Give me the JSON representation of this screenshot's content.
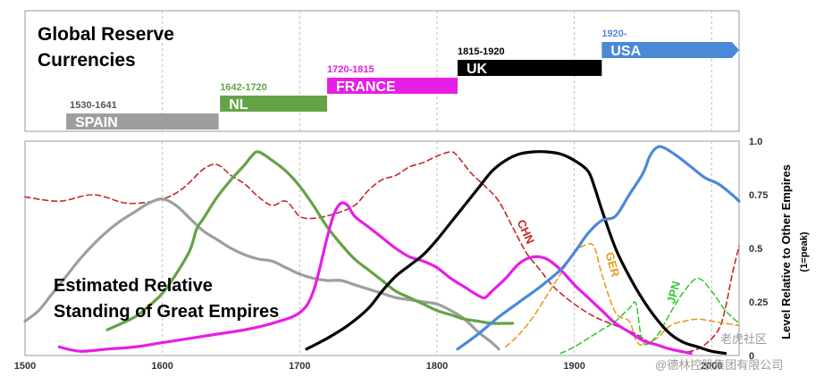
{
  "chart_data": [
    {
      "type": "bar",
      "title": "Global Reserve Currencies",
      "xlim": [
        1500,
        2020
      ],
      "bars": [
        {
          "name": "SPAIN",
          "period": "1530-1641",
          "start": 1530,
          "end": 1641,
          "color": "#9e9e9e",
          "level": 0
        },
        {
          "name": "NL",
          "period": "1642-1720",
          "start": 1642,
          "end": 1720,
          "color": "#64a347",
          "level": 1
        },
        {
          "name": "FRANCE",
          "period": "1720-1815",
          "start": 1720,
          "end": 1815,
          "color": "#e61ee6",
          "level": 2
        },
        {
          "name": "UK",
          "period": "1815-1920",
          "start": 1815,
          "end": 1920,
          "color": "#000000",
          "level": 3
        },
        {
          "name": "USA",
          "period": "1920-",
          "start": 1920,
          "end": 2020,
          "color": "#4a89d8",
          "level": 4,
          "arrow": true
        }
      ]
    },
    {
      "type": "line",
      "title": "Estimated Relative Standing of Great Empires",
      "ylabel": "Level Relative to Other Empires",
      "ylabel_sub": "(1=peak)",
      "xlim": [
        1500,
        2020
      ],
      "ylim": [
        0,
        1
      ],
      "xticks": [
        1500,
        1600,
        1700,
        1800,
        1900,
        2000
      ],
      "xtick_labels": [
        "1500",
        "1600",
        "1700",
        "1800",
        "1900",
        "2000"
      ],
      "yticks": [
        0,
        0.25,
        0.5,
        0.75,
        1
      ],
      "ytick_labels": [
        "0",
        "0.25",
        "0.5",
        "0.75",
        "1.0"
      ],
      "grid": "vertical-dashed",
      "series": [
        {
          "name": "",
          "color": "#c62828",
          "dash": true,
          "x": [
            1500,
            1525,
            1550,
            1575,
            1600,
            1615,
            1630,
            1640,
            1650,
            1660,
            1670,
            1680,
            1690,
            1700,
            1710,
            1725,
            1740,
            1750,
            1760,
            1770,
            1780,
            1790,
            1800,
            1810,
            1815,
            1825,
            1835,
            1845,
            1855,
            1865,
            1875,
            1885,
            1900,
            1915,
            1930,
            1945,
            1955,
            1965,
            1975,
            1985,
            1995,
            2005,
            2010,
            2015,
            2020
          ],
          "y": [
            0.74,
            0.72,
            0.75,
            0.71,
            0.73,
            0.78,
            0.87,
            0.89,
            0.84,
            0.8,
            0.74,
            0.7,
            0.72,
            0.65,
            0.64,
            0.66,
            0.7,
            0.77,
            0.82,
            0.84,
            0.88,
            0.9,
            0.93,
            0.95,
            0.93,
            0.85,
            0.79,
            0.72,
            0.6,
            0.48,
            0.4,
            0.32,
            0.24,
            0.18,
            0.14,
            0.1,
            0.06,
            0.04,
            0.02,
            0.02,
            0.05,
            0.12,
            0.22,
            0.38,
            0.51
          ]
        },
        {
          "name": "SPAIN",
          "color": "#9e9e9e",
          "x": [
            1500,
            1510,
            1520,
            1530,
            1540,
            1550,
            1560,
            1570,
            1580,
            1590,
            1600,
            1610,
            1620,
            1630,
            1640,
            1650,
            1660,
            1670,
            1680,
            1690,
            1700,
            1710,
            1720,
            1730,
            1740,
            1750,
            1760,
            1770,
            1780,
            1790,
            1800,
            1810,
            1820,
            1830,
            1840,
            1845
          ],
          "y": [
            0.16,
            0.21,
            0.29,
            0.37,
            0.45,
            0.52,
            0.58,
            0.63,
            0.67,
            0.71,
            0.73,
            0.7,
            0.64,
            0.58,
            0.54,
            0.5,
            0.47,
            0.45,
            0.44,
            0.41,
            0.38,
            0.36,
            0.35,
            0.35,
            0.33,
            0.31,
            0.29,
            0.27,
            0.26,
            0.25,
            0.24,
            0.21,
            0.17,
            0.11,
            0.06,
            0.03
          ]
        },
        {
          "name": "NL",
          "color": "#64a347",
          "x": [
            1560,
            1580,
            1590,
            1600,
            1610,
            1620,
            1625,
            1630,
            1640,
            1650,
            1660,
            1665,
            1670,
            1680,
            1690,
            1700,
            1710,
            1720,
            1730,
            1740,
            1750,
            1760,
            1770,
            1780,
            1790,
            1800,
            1810,
            1820,
            1830,
            1840,
            1850,
            1855
          ],
          "y": [
            0.12,
            0.18,
            0.23,
            0.29,
            0.38,
            0.49,
            0.59,
            0.64,
            0.74,
            0.82,
            0.89,
            0.93,
            0.95,
            0.91,
            0.86,
            0.79,
            0.7,
            0.6,
            0.52,
            0.45,
            0.4,
            0.35,
            0.3,
            0.27,
            0.24,
            0.21,
            0.19,
            0.17,
            0.16,
            0.15,
            0.15,
            0.15
          ]
        },
        {
          "name": "FRANCE",
          "color": "#e61ee6",
          "x": [
            1525,
            1540,
            1560,
            1580,
            1600,
            1620,
            1640,
            1660,
            1680,
            1700,
            1710,
            1720,
            1725,
            1730,
            1735,
            1740,
            1750,
            1760,
            1770,
            1780,
            1790,
            1800,
            1810,
            1820,
            1830,
            1835,
            1840,
            1850,
            1860,
            1870,
            1880,
            1890,
            1900,
            1910,
            1920,
            1930,
            1940,
            1950,
            1960,
            1970,
            1985
          ],
          "y": [
            0.04,
            0.02,
            0.03,
            0.04,
            0.06,
            0.08,
            0.1,
            0.12,
            0.15,
            0.2,
            0.3,
            0.55,
            0.66,
            0.71,
            0.7,
            0.65,
            0.6,
            0.55,
            0.5,
            0.46,
            0.44,
            0.41,
            0.36,
            0.32,
            0.28,
            0.27,
            0.3,
            0.36,
            0.43,
            0.46,
            0.45,
            0.4,
            0.33,
            0.27,
            0.21,
            0.15,
            0.11,
            0.07,
            0.05,
            0.03,
            0.01
          ]
        },
        {
          "name": "UK",
          "color": "#000000",
          "x": [
            1705,
            1720,
            1735,
            1750,
            1760,
            1770,
            1780,
            1790,
            1800,
            1810,
            1820,
            1830,
            1840,
            1850,
            1860,
            1870,
            1880,
            1890,
            1900,
            1910,
            1915,
            1920,
            1930,
            1940,
            1950,
            1960,
            1970,
            1980,
            1990,
            2000,
            2010
          ],
          "y": [
            0.03,
            0.08,
            0.14,
            0.22,
            0.3,
            0.37,
            0.42,
            0.47,
            0.54,
            0.62,
            0.7,
            0.78,
            0.86,
            0.91,
            0.94,
            0.95,
            0.95,
            0.94,
            0.91,
            0.86,
            0.78,
            0.68,
            0.5,
            0.37,
            0.26,
            0.17,
            0.1,
            0.06,
            0.04,
            0.02,
            0.01
          ]
        },
        {
          "name": "",
          "color": "#4a89d8",
          "x": [
            1815,
            1830,
            1845,
            1860,
            1875,
            1890,
            1900,
            1910,
            1920,
            1930,
            1940,
            1950,
            1955,
            1960,
            1965,
            1975,
            1985,
            1995,
            2005,
            2015,
            2020
          ],
          "y": [
            0.03,
            0.1,
            0.18,
            0.25,
            0.32,
            0.4,
            0.48,
            0.57,
            0.63,
            0.65,
            0.75,
            0.85,
            0.93,
            0.97,
            0.97,
            0.93,
            0.88,
            0.83,
            0.8,
            0.75,
            0.72
          ]
        },
        {
          "name": "GER",
          "color": "#e89b1a",
          "dash": true,
          "x": [
            1850,
            1860,
            1870,
            1880,
            1890,
            1900,
            1910,
            1915,
            1920,
            1930,
            1940,
            1945,
            1950,
            1960,
            1970,
            1980,
            1990,
            2000,
            2010,
            2020
          ],
          "y": [
            0.04,
            0.1,
            0.18,
            0.28,
            0.38,
            0.48,
            0.52,
            0.5,
            0.38,
            0.2,
            0.16,
            0.07,
            0.05,
            0.08,
            0.14,
            0.16,
            0.17,
            0.16,
            0.15,
            0.14
          ]
        },
        {
          "name": "JPN",
          "color": "#33cc33",
          "dash": true,
          "x": [
            1890,
            1900,
            1910,
            1920,
            1930,
            1940,
            1945,
            1950,
            1960,
            1970,
            1980,
            1990,
            2000,
            2010,
            2020
          ],
          "y": [
            0.01,
            0.04,
            0.08,
            0.12,
            0.16,
            0.22,
            0.24,
            0.06,
            0.09,
            0.2,
            0.3,
            0.36,
            0.3,
            0.21,
            0.15
          ]
        }
      ],
      "annotations": [
        {
          "text": "CHN",
          "x": 1862,
          "y": 0.57,
          "rotate": 65,
          "color": "#c62828"
        },
        {
          "text": "GER",
          "x": 1925,
          "y": 0.42,
          "rotate": 75,
          "color": "#e89b1a"
        },
        {
          "text": "JPN",
          "x": 1975,
          "y": 0.29,
          "rotate": -75,
          "color": "#33cc33"
        }
      ]
    }
  ],
  "watermarks": [
    "老虎社区",
    "@德林控股集团有限公司"
  ]
}
